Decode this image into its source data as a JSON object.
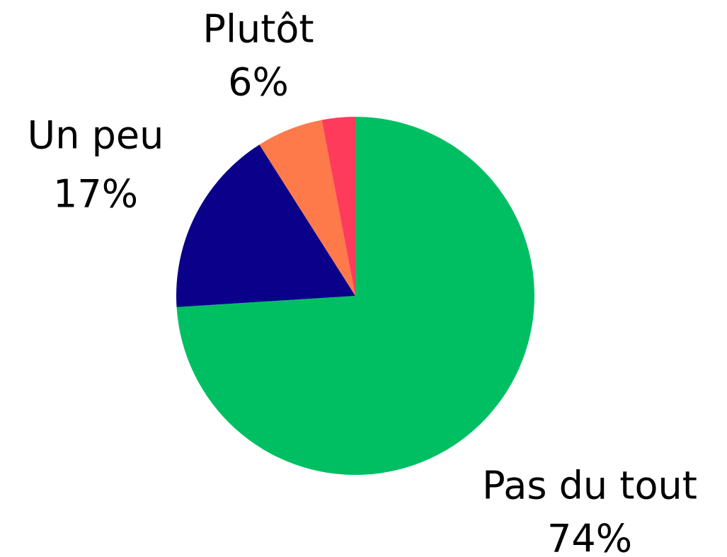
{
  "chart_data": {
    "type": "pie",
    "categories": [
      "Pas du tout",
      "Un peu",
      "Plutôt",
      null
    ],
    "values": [
      74,
      17,
      6,
      3
    ],
    "value_labels": [
      "74%",
      "17%",
      "6%",
      null
    ],
    "colors": [
      "#00BF63",
      "#0A0089",
      "#FF7A4A",
      "#FF3B5C"
    ]
  }
}
